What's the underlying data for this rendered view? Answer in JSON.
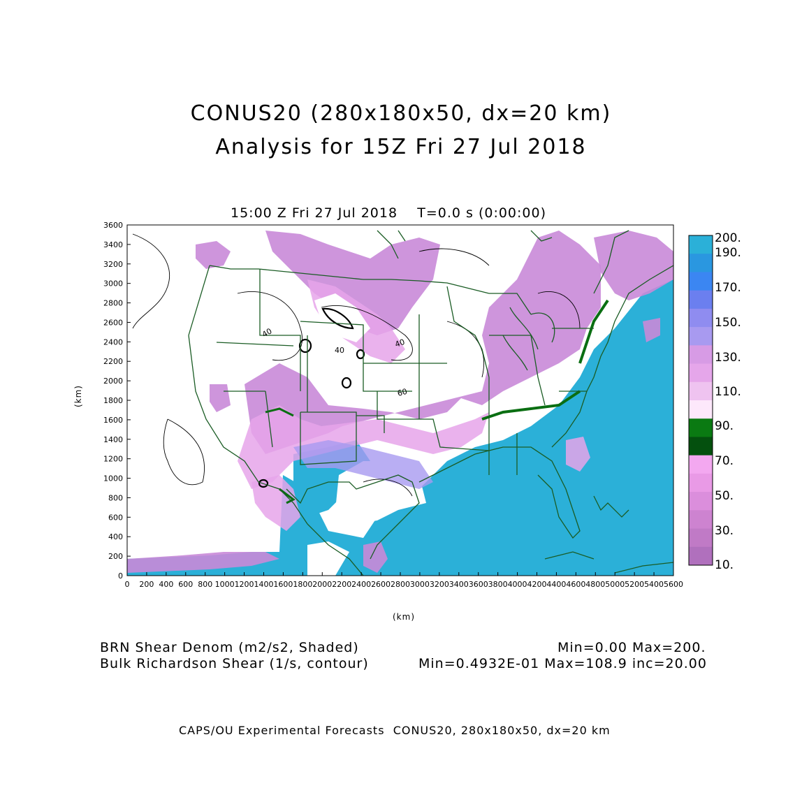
{
  "title": {
    "line1": "CONUS20 (280x180x50, dx=20 km)",
    "line2": "Analysis for 15Z Fri 27 Jul 2018"
  },
  "subtitle": "15:00 Z Fri 27 Jul 2018    T=0.0 s (0:00:00)",
  "axes": {
    "xlabel": "(km)",
    "ylabel": "(km)",
    "xticks": [
      "0",
      "200",
      "400",
      "600",
      "800",
      "1000",
      "1200",
      "1400",
      "1600",
      "1800",
      "2000",
      "2200",
      "2400",
      "2600",
      "2800",
      "3000",
      "3200",
      "3400",
      "3600",
      "3800",
      "4000",
      "4200",
      "4400",
      "4600",
      "4800",
      "5000",
      "5200",
      "5400",
      "5600"
    ],
    "yticks": [
      "0",
      "200",
      "400",
      "600",
      "800",
      "1000",
      "1200",
      "1400",
      "1600",
      "1800",
      "2000",
      "2200",
      "2400",
      "2600",
      "2800",
      "3000",
      "3200",
      "3400",
      "3600"
    ],
    "xlim": [
      0,
      5600
    ],
    "ylim": [
      0,
      3600
    ]
  },
  "contour_labels": [
    "40",
    "40",
    "40",
    "60"
  ],
  "colorbar": {
    "labels": [
      "200.",
      "190.",
      "170.",
      "150.",
      "130.",
      "110.",
      "90.",
      "70.",
      "50.",
      "30.",
      "10."
    ],
    "colors": [
      "#2bb0d8",
      "#2a97e0",
      "#3b86f2",
      "#6b7fef",
      "#8f8cf0",
      "#a89af0",
      "#d79be5",
      "#e5a6ea",
      "#efc3f0",
      "#fde8fb",
      "#0a7a12",
      "#04500e",
      "#f3a8f0",
      "#e99ae6",
      "#db8edc",
      "#cd83d0",
      "#c07ac6",
      "#b070bd"
    ]
  },
  "legend": {
    "shaded_name": "BRN Shear Denom (m2/s2, Shaded)",
    "shaded_stats": "Min=0.00 Max=200.",
    "contour_name": "Bulk Richardson Shear (1/s, contour)",
    "contour_stats": "Min=0.4932E-01 Max=108.9 inc=20.00"
  },
  "footer": "CAPS/OU Experimental Forecasts  CONUS20, 280x180x50, dx=20 km"
}
